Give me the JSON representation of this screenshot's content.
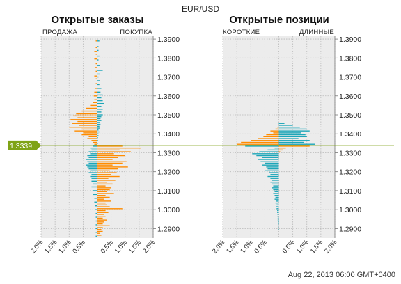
{
  "header": {
    "pair": "EUR/USD",
    "timestamp": "Aug 22, 2013 06:00 GMT+0400"
  },
  "colors": {
    "orange": "#ff8c00",
    "teal": "#1ca6b8",
    "green": "#7fa316",
    "panel": "#ececec",
    "grid": "#b8b8b8"
  },
  "current_price": "1.3339",
  "chart_data": [
    {
      "type": "bar",
      "title": "Открытые заказы",
      "left_label": "ПРОДАЖА",
      "right_label": "ПОКУПКА",
      "y_ticks": [
        "1.2900",
        "1.3000",
        "1.3100",
        "1.3200",
        "1.3300",
        "1.3400",
        "1.3500",
        "1.3600",
        "1.3700",
        "1.3800",
        "1.3900"
      ],
      "y_range": [
        1.285,
        1.3915
      ],
      "x_ticks": [
        "2.0%",
        "1.5%",
        "1.0%",
        "0.5%",
        "",
        "0.5%",
        "1.0%",
        "1.5%",
        "2.0%"
      ],
      "x_range": [
        -2.0,
        2.0
      ],
      "current_price": 1.3339,
      "grid": true,
      "price_step": 0.0005,
      "left_series": {
        "name": "ПРОДАЖА",
        "points": [
          [
            1.389,
            0.05
          ],
          [
            1.3855,
            0.05
          ],
          [
            1.3835,
            0.1
          ],
          [
            1.382,
            0.05
          ],
          [
            1.3795,
            0.1
          ],
          [
            1.377,
            0.05
          ],
          [
            1.375,
            0.08
          ],
          [
            1.373,
            0.05
          ],
          [
            1.3705,
            0.1
          ],
          [
            1.369,
            0.05
          ],
          [
            1.3665,
            0.05
          ],
          [
            1.364,
            0.08
          ],
          [
            1.362,
            0.1
          ],
          [
            1.36,
            0.12
          ],
          [
            1.358,
            0.1
          ],
          [
            1.3565,
            0.15
          ],
          [
            1.355,
            0.25
          ],
          [
            1.3535,
            0.4
          ],
          [
            1.352,
            0.55
          ],
          [
            1.3505,
            0.75
          ],
          [
            1.3495,
            0.85
          ],
          [
            1.3485,
            0.7
          ],
          [
            1.3475,
            0.95
          ],
          [
            1.3465,
            0.7
          ],
          [
            1.3455,
            0.9
          ],
          [
            1.3445,
            0.65
          ],
          [
            1.3435,
            1.0
          ],
          [
            1.3425,
            0.55
          ],
          [
            1.3415,
            0.8
          ],
          [
            1.3405,
            0.5
          ],
          [
            1.3395,
            0.55
          ],
          [
            1.3385,
            0.3
          ],
          [
            1.3375,
            0.35
          ],
          [
            1.3365,
            0.2
          ],
          [
            1.3355,
            0.15
          ],
          [
            1.3345,
            0.1
          ],
          [
            1.3335,
            0.15
          ],
          [
            1.3325,
            0.25
          ],
          [
            1.3315,
            0.2
          ],
          [
            1.3305,
            0.3
          ],
          [
            1.3295,
            0.25
          ],
          [
            1.3285,
            0.35
          ],
          [
            1.3275,
            0.3
          ],
          [
            1.3265,
            0.4
          ],
          [
            1.3255,
            0.35
          ],
          [
            1.3245,
            0.3
          ],
          [
            1.3235,
            0.4
          ],
          [
            1.3225,
            0.35
          ],
          [
            1.3215,
            0.3
          ],
          [
            1.3205,
            0.25
          ],
          [
            1.3195,
            0.3
          ],
          [
            1.3185,
            0.2
          ],
          [
            1.3175,
            0.25
          ],
          [
            1.3165,
            0.2
          ],
          [
            1.315,
            0.2
          ],
          [
            1.3135,
            0.15
          ],
          [
            1.312,
            0.2
          ],
          [
            1.31,
            0.15
          ],
          [
            1.308,
            0.15
          ],
          [
            1.306,
            0.1
          ],
          [
            1.304,
            0.1
          ],
          [
            1.302,
            0.08
          ],
          [
            1.3,
            0.08
          ],
          [
            1.298,
            0.05
          ],
          [
            1.296,
            0.05
          ],
          [
            1.294,
            0.05
          ],
          [
            1.292,
            0.05
          ],
          [
            1.29,
            0.05
          ],
          [
            1.288,
            0.05
          ],
          [
            1.286,
            0.05
          ]
        ]
      },
      "right_series": {
        "name": "ПОКУПКА",
        "points": [
          [
            1.389,
            0.08
          ],
          [
            1.386,
            0.05
          ],
          [
            1.384,
            0.05
          ],
          [
            1.381,
            0.08
          ],
          [
            1.379,
            0.05
          ],
          [
            1.376,
            0.1
          ],
          [
            1.3735,
            0.2
          ],
          [
            1.3715,
            0.1
          ],
          [
            1.37,
            0.05
          ],
          [
            1.368,
            0.1
          ],
          [
            1.366,
            0.08
          ],
          [
            1.364,
            0.15
          ],
          [
            1.362,
            0.12
          ],
          [
            1.3605,
            0.2
          ],
          [
            1.359,
            0.15
          ],
          [
            1.3575,
            0.2
          ],
          [
            1.356,
            0.25
          ],
          [
            1.3545,
            0.15
          ],
          [
            1.353,
            0.2
          ],
          [
            1.3515,
            0.15
          ],
          [
            1.35,
            0.2
          ],
          [
            1.349,
            0.15
          ],
          [
            1.348,
            0.12
          ],
          [
            1.347,
            0.15
          ],
          [
            1.346,
            0.1
          ],
          [
            1.345,
            0.12
          ],
          [
            1.344,
            0.08
          ],
          [
            1.343,
            0.1
          ],
          [
            1.342,
            0.05
          ],
          [
            1.341,
            0.08
          ],
          [
            1.34,
            0.05
          ],
          [
            1.339,
            0.05
          ],
          [
            1.338,
            0.03
          ],
          [
            1.3365,
            0.03
          ],
          [
            1.335,
            0.03
          ],
          [
            1.3335,
            0.9
          ],
          [
            1.3325,
            1.55
          ],
          [
            1.3315,
            0.8
          ],
          [
            1.3305,
            1.2
          ],
          [
            1.3295,
            0.6
          ],
          [
            1.3285,
            1.0
          ],
          [
            1.3275,
            0.75
          ],
          [
            1.3265,
            0.55
          ],
          [
            1.3255,
            1.05
          ],
          [
            1.3245,
            0.9
          ],
          [
            1.3235,
            0.55
          ],
          [
            1.3225,
            1.1
          ],
          [
            1.3215,
            0.75
          ],
          [
            1.3205,
            0.45
          ],
          [
            1.3195,
            0.7
          ],
          [
            1.3185,
            0.5
          ],
          [
            1.3175,
            0.8
          ],
          [
            1.3165,
            0.4
          ],
          [
            1.3155,
            0.65
          ],
          [
            1.3145,
            0.35
          ],
          [
            1.3135,
            0.55
          ],
          [
            1.3125,
            0.3
          ],
          [
            1.3115,
            0.5
          ],
          [
            1.3105,
            0.45
          ],
          [
            1.3095,
            0.35
          ],
          [
            1.3085,
            0.6
          ],
          [
            1.3075,
            0.3
          ],
          [
            1.3065,
            0.45
          ],
          [
            1.3055,
            0.25
          ],
          [
            1.3045,
            0.5
          ],
          [
            1.3035,
            0.3
          ],
          [
            1.3025,
            0.35
          ],
          [
            1.3015,
            0.45
          ],
          [
            1.3005,
            0.9
          ],
          [
            1.2995,
            0.3
          ],
          [
            1.2985,
            0.4
          ],
          [
            1.2975,
            0.25
          ],
          [
            1.2965,
            0.3
          ],
          [
            1.2955,
            0.2
          ],
          [
            1.2945,
            0.35
          ],
          [
            1.2935,
            0.25
          ],
          [
            1.2925,
            0.2
          ],
          [
            1.2915,
            0.45
          ],
          [
            1.2905,
            0.2
          ],
          [
            1.2895,
            0.15
          ],
          [
            1.2885,
            0.2
          ],
          [
            1.2875,
            0.1
          ],
          [
            1.2865,
            0.15
          ]
        ]
      }
    },
    {
      "type": "bar",
      "title": "Открытые позиции",
      "left_label": "КОРОТКИЕ",
      "right_label": "ДЛИННЫЕ",
      "y_ticks": [
        "1.2900",
        "1.3000",
        "1.3100",
        "1.3200",
        "1.3300",
        "1.3400",
        "1.3500",
        "1.3600",
        "1.3700",
        "1.3800",
        "1.3900"
      ],
      "y_range": [
        1.285,
        1.3915
      ],
      "x_ticks": [
        "2.0%",
        "1.5%",
        "1.0%",
        "0.5%",
        "",
        "0.5%",
        "1.0%",
        "1.5%",
        "2.0%"
      ],
      "x_range": [
        -2.0,
        2.0
      ],
      "current_price": 1.3339,
      "grid": true,
      "price_step": 0.0005,
      "left_series": {
        "name": "КОРОТКИЕ",
        "points": [
          [
            1.3435,
            0.05
          ],
          [
            1.3425,
            0.12
          ],
          [
            1.3415,
            0.3
          ],
          [
            1.3405,
            0.2
          ],
          [
            1.3395,
            0.45
          ],
          [
            1.3385,
            0.55
          ],
          [
            1.3375,
            0.75
          ],
          [
            1.3365,
            1.0
          ],
          [
            1.3355,
            1.35
          ],
          [
            1.3345,
            1.5
          ],
          [
            1.3335,
            1.2
          ],
          [
            1.3325,
            0.15
          ],
          [
            1.3315,
            0.4
          ],
          [
            1.3305,
            0.7
          ],
          [
            1.3295,
            0.95
          ],
          [
            1.3285,
            0.8
          ],
          [
            1.3275,
            0.6
          ],
          [
            1.3265,
            0.75
          ],
          [
            1.3255,
            0.65
          ],
          [
            1.3245,
            0.5
          ],
          [
            1.3235,
            0.6
          ],
          [
            1.3225,
            0.45
          ],
          [
            1.3215,
            0.4
          ],
          [
            1.3205,
            0.5
          ],
          [
            1.3195,
            0.35
          ],
          [
            1.3185,
            0.3
          ],
          [
            1.3175,
            0.4
          ],
          [
            1.3165,
            0.3
          ],
          [
            1.3155,
            0.25
          ],
          [
            1.3145,
            0.3
          ],
          [
            1.3135,
            0.25
          ],
          [
            1.3125,
            0.2
          ],
          [
            1.3115,
            0.25
          ],
          [
            1.3105,
            0.2
          ],
          [
            1.3095,
            0.15
          ],
          [
            1.3085,
            0.2
          ],
          [
            1.3075,
            0.15
          ],
          [
            1.3065,
            0.12
          ],
          [
            1.3055,
            0.15
          ],
          [
            1.3045,
            0.1
          ],
          [
            1.3035,
            0.12
          ],
          [
            1.3025,
            0.08
          ],
          [
            1.3015,
            0.1
          ],
          [
            1.3005,
            0.08
          ],
          [
            1.2995,
            0.06
          ],
          [
            1.2985,
            0.06
          ],
          [
            1.2975,
            0.05
          ],
          [
            1.2965,
            0.05
          ],
          [
            1.2955,
            0.04
          ],
          [
            1.2945,
            0.04
          ],
          [
            1.2935,
            0.03
          ],
          [
            1.2925,
            0.03
          ],
          [
            1.2915,
            0.03
          ],
          [
            1.2905,
            0.02
          ],
          [
            1.2895,
            0.02
          ]
        ]
      },
      "right_series": {
        "name": "ДЛИННЫЕ",
        "points": [
          [
            1.3455,
            0.2
          ],
          [
            1.3445,
            0.5
          ],
          [
            1.3435,
            0.75
          ],
          [
            1.3425,
            1.0
          ],
          [
            1.3415,
            1.1
          ],
          [
            1.3405,
            0.8
          ],
          [
            1.3395,
            0.95
          ],
          [
            1.3385,
            1.0
          ],
          [
            1.3375,
            0.7
          ],
          [
            1.3365,
            1.1
          ],
          [
            1.3355,
            0.9
          ],
          [
            1.3345,
            1.3
          ],
          [
            1.3335,
            1.1
          ],
          [
            1.3325,
            0.25
          ],
          [
            1.3315,
            0.15
          ],
          [
            1.3305,
            0.05
          ]
        ]
      }
    }
  ]
}
